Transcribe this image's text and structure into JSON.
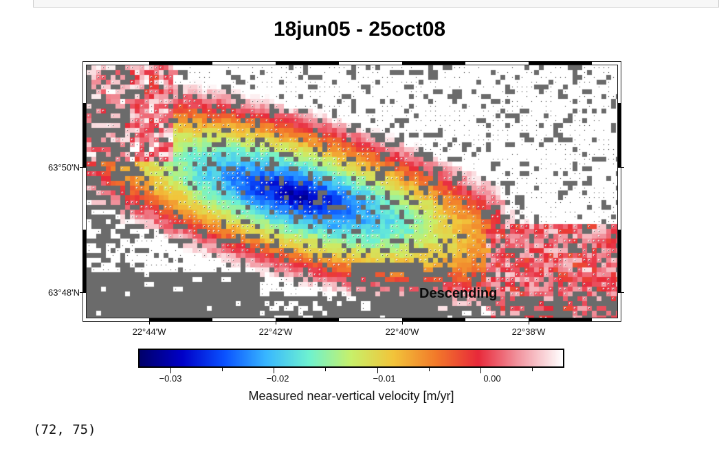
{
  "figure": {
    "title": "18jun05 - 25oct08",
    "annotation": "Descending",
    "lat_labels": [
      "63°50'N",
      "63°48'N"
    ],
    "lon_labels": [
      "22°44'W",
      "22°42'W",
      "22°40'W",
      "22°38'W"
    ]
  },
  "colorbar": {
    "title": "Measured near-vertical velocity [m/yr]",
    "labels": [
      "−0.03",
      "−0.02",
      "−0.01",
      "0.00"
    ],
    "range": [
      -0.033,
      0.008
    ],
    "colors": [
      "#00006a",
      "#0000c8",
      "#0a52ff",
      "#39b8ff",
      "#6ef2d0",
      "#c8f06a",
      "#f2c43a",
      "#f27a2a",
      "#e8293a",
      "#f29aa4",
      "#ffffff"
    ]
  },
  "map_data": {
    "background_color": "#6b6b6b",
    "description_of_field": "velocity field with a central subsidence bowl"
  },
  "output": {
    "text": "(72, 75)"
  }
}
